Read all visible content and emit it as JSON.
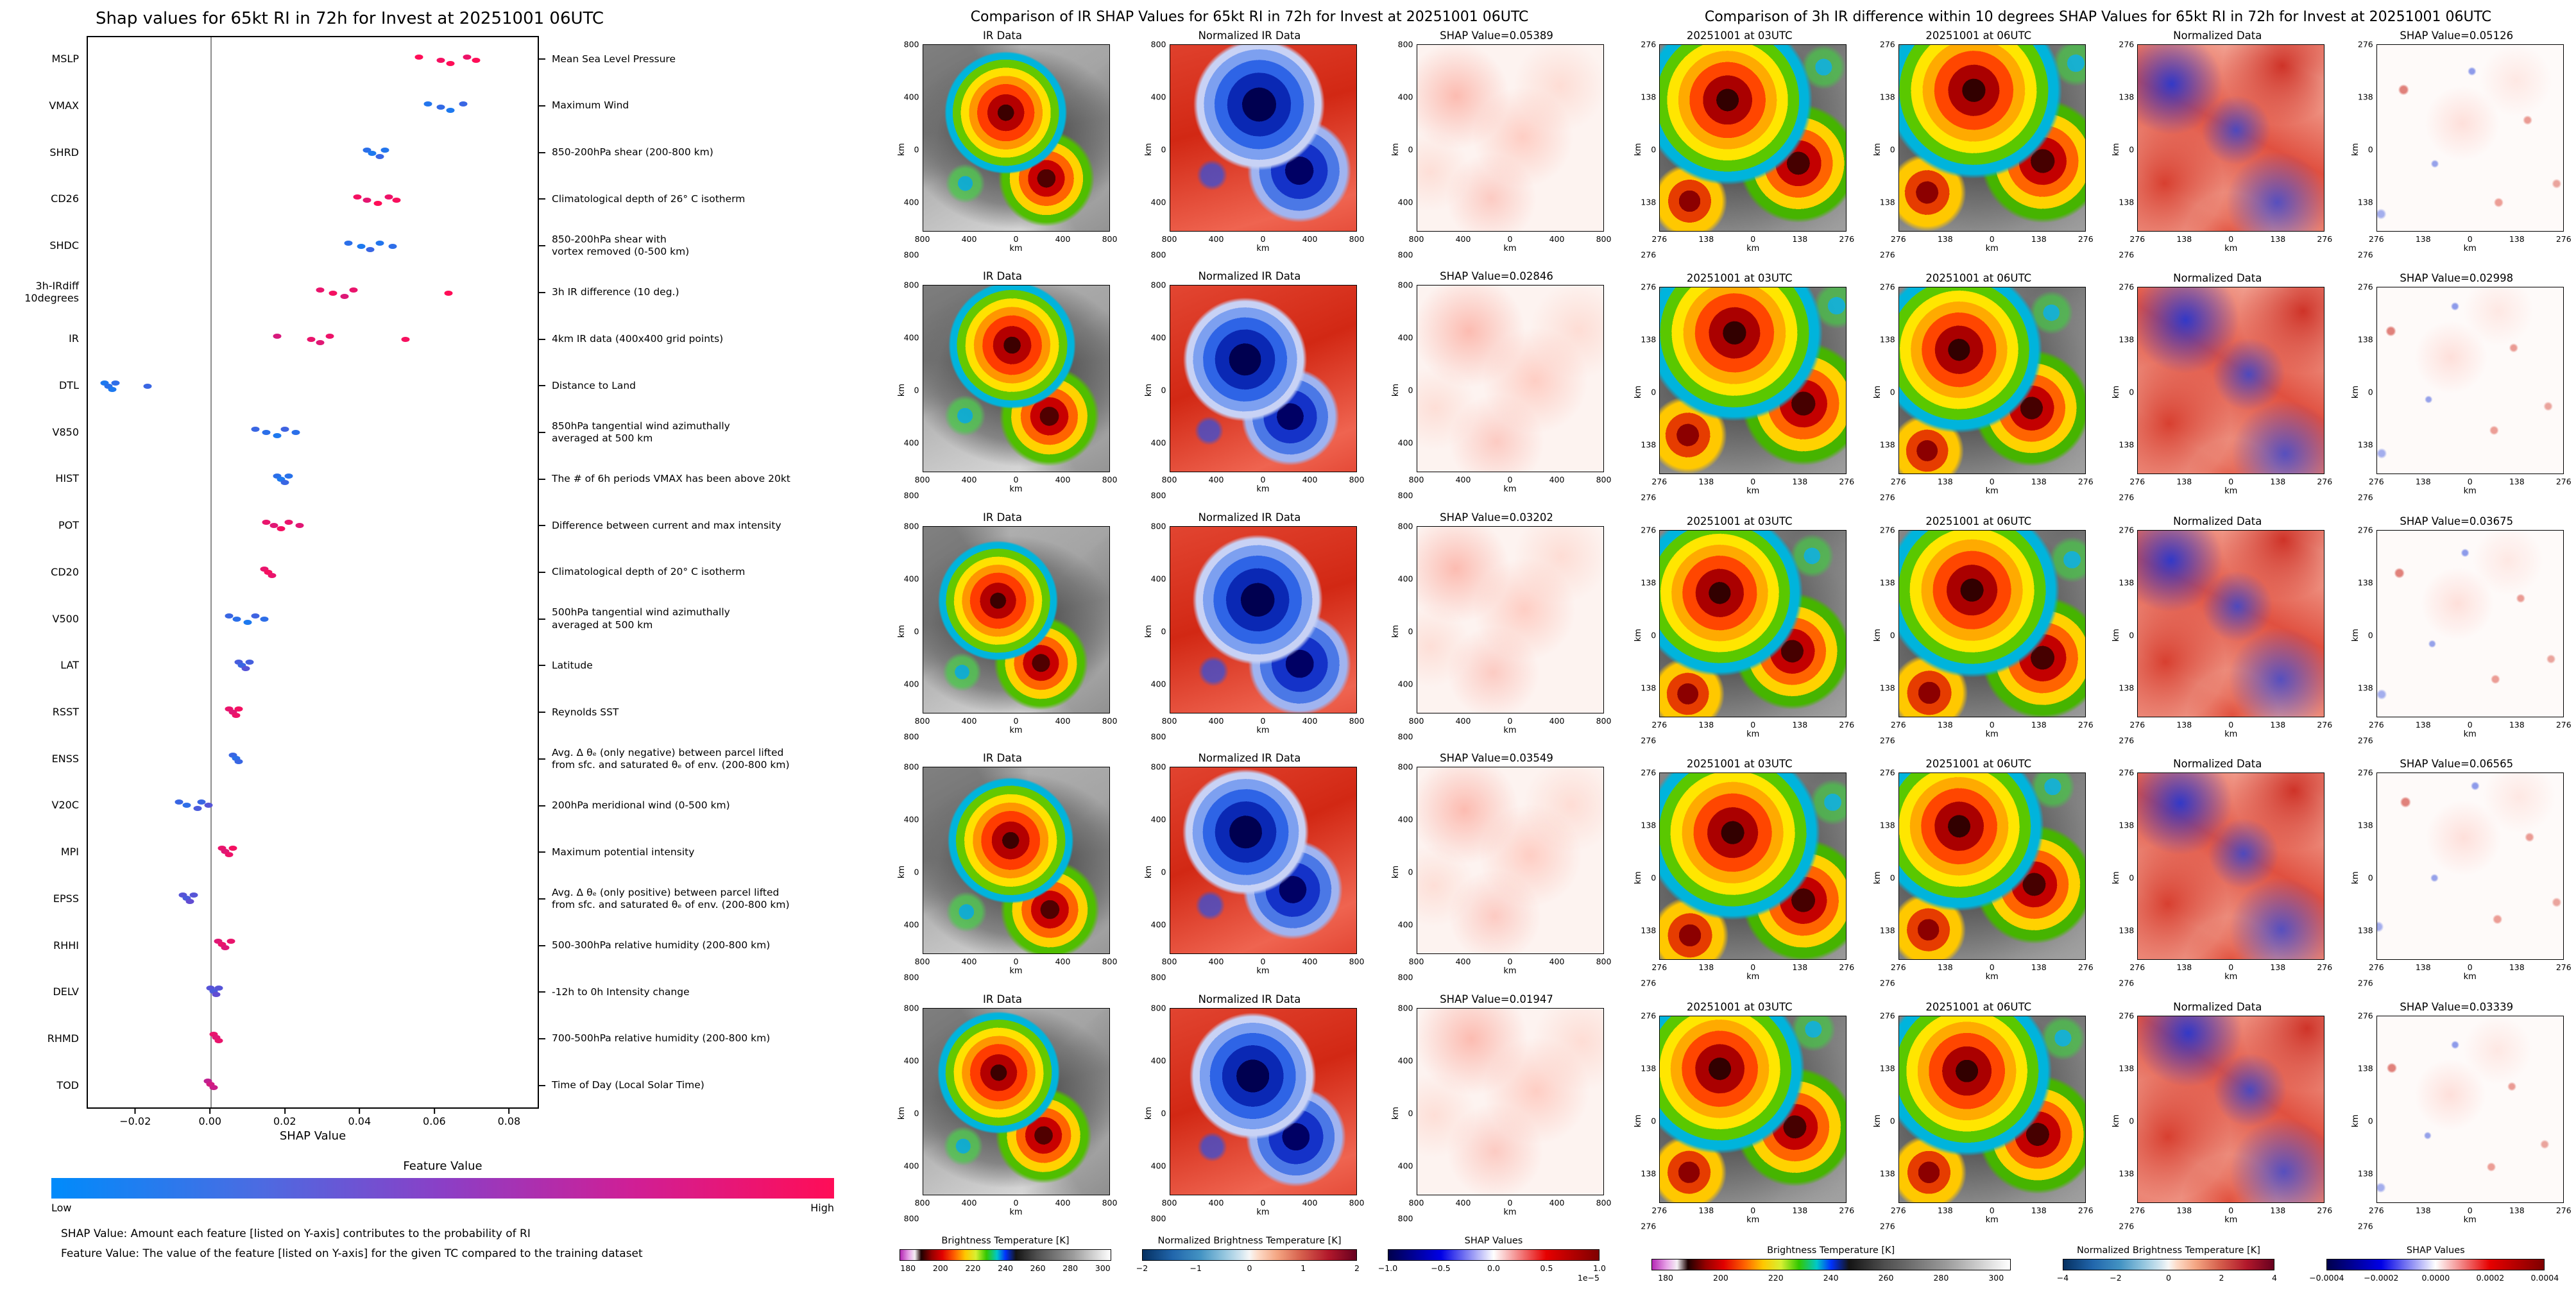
{
  "chart_data": [
    {
      "type": "scatter",
      "subtype": "shap-beeswarm",
      "title": "Shap values for 65kt RI in 72h for Invest at 20251001 06UTC",
      "xlabel": "SHAP Value",
      "xlim": [
        -0.033,
        0.088
      ],
      "xticks": [
        -0.02,
        0.0,
        0.02,
        0.04,
        0.06,
        0.08
      ],
      "grid": false,
      "legend_position": "none",
      "colors": {
        "low": "#008bfb",
        "mid": "#8f2fbf",
        "high": "#ff0d57",
        "zero_line": "#8d8d8d"
      },
      "colorbar": {
        "label": "Feature Value",
        "low": "Low",
        "high": "High"
      },
      "footnotes": [
        "SHAP Value: Amount each feature [listed on Y-axis] contributes to the probability of RI",
        "Feature Value: The value of the feature [listed on Y-axis] for the given TC compared to the training dataset"
      ],
      "features": [
        {
          "code": "MSLP",
          "desc": "Mean Sea Level Pressure",
          "points": [
            [
              0.056,
              1
            ],
            [
              0.062,
              0.95
            ],
            [
              0.0645,
              1
            ],
            [
              0.069,
              0.92
            ],
            [
              0.0715,
              1
            ]
          ]
        },
        {
          "code": "VMAX",
          "desc": "Maximum Wind",
          "points": [
            [
              0.0585,
              0.12
            ],
            [
              0.062,
              0.18
            ],
            [
              0.0645,
              0.1
            ],
            [
              0.068,
              0.2
            ]
          ]
        },
        {
          "code": "SHRD",
          "desc": "850-200hPa shear (200-800 km)",
          "points": [
            [
              0.042,
              0.15
            ],
            [
              0.0435,
              0.1
            ],
            [
              0.0455,
              0.2
            ],
            [
              0.047,
              0.12
            ]
          ]
        },
        {
          "code": "CD26",
          "desc": "Climatological depth of 26° C isotherm",
          "points": [
            [
              0.0395,
              0.95
            ],
            [
              0.042,
              0.88
            ],
            [
              0.045,
              1
            ],
            [
              0.048,
              0.92
            ],
            [
              0.05,
              0.97
            ]
          ]
        },
        {
          "code": "SHDC",
          "desc": "850-200hPa shear with\nvortex removed (0-500 km)",
          "points": [
            [
              0.037,
              0.15
            ],
            [
              0.0405,
              0.1
            ],
            [
              0.043,
              0.2
            ],
            [
              0.0455,
              0.12
            ],
            [
              0.049,
              0.16
            ]
          ]
        },
        {
          "code": "3h-IRdiff\n10degrees",
          "desc": "3h IR difference (10 deg.)",
          "points": [
            [
              0.0295,
              0.9
            ],
            [
              0.033,
              0.95
            ],
            [
              0.036,
              0.85
            ],
            [
              0.0385,
              0.9
            ],
            [
              0.064,
              1
            ]
          ]
        },
        {
          "code": "IR",
          "desc": "4km IR data (400x400 grid points)",
          "points": [
            [
              0.018,
              0.82
            ],
            [
              0.027,
              0.9
            ],
            [
              0.0295,
              0.86
            ],
            [
              0.032,
              0.92
            ],
            [
              0.0525,
              0.96
            ]
          ]
        },
        {
          "code": "DTL",
          "desc": "Distance to Land",
          "points": [
            [
              -0.0285,
              0.1
            ],
            [
              -0.0275,
              0.14
            ],
            [
              -0.0265,
              0.1
            ],
            [
              -0.0255,
              0.16
            ],
            [
              -0.017,
              0.2
            ]
          ]
        },
        {
          "code": "V850",
          "desc": "850hPa tangential wind azimuthally\naveraged at 500 km",
          "points": [
            [
              0.012,
              0.2
            ],
            [
              0.015,
              0.15
            ],
            [
              0.018,
              0.1
            ],
            [
              0.02,
              0.22
            ],
            [
              0.023,
              0.15
            ]
          ]
        },
        {
          "code": "HIST",
          "desc": "The # of 6h periods VMAX has been above 20kt",
          "points": [
            [
              0.018,
              0.15
            ],
            [
              0.019,
              0.1
            ],
            [
              0.02,
              0.2
            ],
            [
              0.021,
              0.14
            ]
          ]
        },
        {
          "code": "POT",
          "desc": "Difference between current and max intensity",
          "points": [
            [
              0.015,
              0.9
            ],
            [
              0.017,
              0.86
            ],
            [
              0.019,
              0.95
            ],
            [
              0.021,
              0.9
            ],
            [
              0.024,
              0.86
            ]
          ]
        },
        {
          "code": "CD20",
          "desc": "Climatological depth of 20° C isotherm",
          "points": [
            [
              0.0145,
              0.9
            ],
            [
              0.0155,
              0.96
            ],
            [
              0.0165,
              0.9
            ]
          ]
        },
        {
          "code": "V500",
          "desc": "500hPa tangential wind azimuthally\naveraged at 500 km",
          "points": [
            [
              0.005,
              0.2
            ],
            [
              0.007,
              0.15
            ],
            [
              0.01,
              0.1
            ],
            [
              0.012,
              0.22
            ],
            [
              0.0145,
              0.16
            ]
          ]
        },
        {
          "code": "LAT",
          "desc": "Latitude",
          "points": [
            [
              0.0075,
              0.25
            ],
            [
              0.0085,
              0.2
            ],
            [
              0.0095,
              0.3
            ],
            [
              0.0105,
              0.24
            ]
          ]
        },
        {
          "code": "RSST",
          "desc": "Reynolds SST",
          "points": [
            [
              0.005,
              0.9
            ],
            [
              0.006,
              0.86
            ],
            [
              0.0068,
              0.92
            ],
            [
              0.0075,
              0.95
            ]
          ]
        },
        {
          "code": "ENSS",
          "desc": "Avg. Δ θₑ (only negative) between parcel lifted\nfrom sfc. and saturated θₑ of env. (200-800 km)",
          "points": [
            [
              0.006,
              0.2
            ],
            [
              0.0068,
              0.15
            ],
            [
              0.0075,
              0.2
            ]
          ]
        },
        {
          "code": "V20C",
          "desc": "200hPa meridional wind (0-500 km)",
          "points": [
            [
              -0.0085,
              0.2
            ],
            [
              -0.0065,
              0.16
            ],
            [
              -0.0035,
              0.26
            ],
            [
              -0.0025,
              0.2
            ],
            [
              -0.0005,
              0.3
            ]
          ]
        },
        {
          "code": "MPI",
          "desc": "Maximum potential intensity",
          "points": [
            [
              0.003,
              0.9
            ],
            [
              0.004,
              0.86
            ],
            [
              0.005,
              0.92
            ],
            [
              0.006,
              0.95
            ]
          ]
        },
        {
          "code": "EPSS",
          "desc": "Avg. Δ θₑ (only positive) between parcel lifted\nfrom sfc. and saturated θₑ of env. (200-800 km)",
          "points": [
            [
              -0.0075,
              0.3
            ],
            [
              -0.0065,
              0.26
            ],
            [
              -0.0055,
              0.34
            ],
            [
              -0.0045,
              0.3
            ]
          ]
        },
        {
          "code": "RHHI",
          "desc": "500-300hPa relative humidity (200-800 km)",
          "points": [
            [
              0.002,
              0.86
            ],
            [
              0.003,
              0.9
            ],
            [
              0.004,
              0.85
            ],
            [
              0.0055,
              0.9
            ]
          ]
        },
        {
          "code": "DELV",
          "desc": "-12h to 0h Intensity change",
          "points": [
            [
              0.0,
              0.3
            ],
            [
              0.0008,
              0.26
            ],
            [
              0.0015,
              0.34
            ],
            [
              0.0022,
              0.3
            ]
          ]
        },
        {
          "code": "RHMD",
          "desc": "700-500hPa relative humidity (200-800 km)",
          "points": [
            [
              0.0008,
              0.9
            ],
            [
              0.0015,
              0.86
            ],
            [
              0.0022,
              0.9
            ]
          ]
        },
        {
          "code": "TOD",
          "desc": "Time of Day (Local Solar Time)",
          "points": [
            [
              -0.0008,
              0.72
            ],
            [
              0.0,
              0.8
            ],
            [
              0.0008,
              0.76
            ]
          ]
        }
      ]
    },
    {
      "type": "heatmap",
      "subtype": "image-grid",
      "title": "Comparison of IR SHAP Values for 65kt RI in 72h for Invest at 20251001 06UTC",
      "shap_values": [
        0.05389,
        0.02846,
        0.03202,
        0.03549,
        0.01947
      ],
      "rows": [
        [
          "IR Data",
          "Normalized IR Data",
          "SHAP Value=0.05389"
        ],
        [
          "IR Data",
          "Normalized IR Data",
          "SHAP Value=0.02846"
        ],
        [
          "IR Data",
          "Normalized IR Data",
          "SHAP Value=0.03202"
        ],
        [
          "IR Data",
          "Normalized IR Data",
          "SHAP Value=0.03549"
        ],
        [
          "IR Data",
          "Normalized IR Data",
          "SHAP Value=0.01947"
        ]
      ],
      "cell_kinds": [
        "ir",
        "nir",
        "shapfaint"
      ],
      "axis": {
        "xticks": [
          "800",
          "400",
          "0",
          "400",
          "800"
        ],
        "yticks": [
          "800",
          "400",
          "0",
          "400",
          "800"
        ],
        "xlabel": "km",
        "ylabel": "km",
        "extent_km": 800
      },
      "colorbars": [
        {
          "label": "Brightness Temperature [K]",
          "type": "ir",
          "ticks": [
            "180",
            "200",
            "220",
            "240",
            "260",
            "280",
            "300"
          ],
          "range": [
            180,
            300
          ]
        },
        {
          "label": "Normalized Brightness Temperature [K]",
          "type": "rdbu",
          "ticks": [
            "−2",
            "−1",
            "0",
            "1",
            "2"
          ],
          "range": [
            -2,
            2
          ]
        },
        {
          "label": "SHAP Values",
          "type": "seismic",
          "ticks": [
            "−1.0",
            "−0.5",
            "0.0",
            "0.5",
            "1.0"
          ],
          "exp": "1e−5",
          "range": [
            -1e-05,
            1e-05
          ]
        }
      ]
    },
    {
      "type": "heatmap",
      "subtype": "image-grid",
      "title": "Comparison of 3h IR difference within 10 degrees SHAP Values for 65kt RI in 72h for Invest at 20251001 06UTC",
      "shap_values": [
        0.05126,
        0.02998,
        0.03675,
        0.06565,
        0.03339
      ],
      "rows": [
        [
          "20251001 at 03UTC",
          "20251001 at 06UTC",
          "Normalized Data",
          "SHAP Value=0.05126"
        ],
        [
          "20251001 at 03UTC",
          "20251001 at 06UTC",
          "Normalized Data",
          "SHAP Value=0.02998"
        ],
        [
          "20251001 at 03UTC",
          "20251001 at 06UTC",
          "Normalized Data",
          "SHAP Value=0.03675"
        ],
        [
          "20251001 at 03UTC",
          "20251001 at 06UTC",
          "Normalized Data",
          "SHAP Value=0.06565"
        ],
        [
          "20251001 at 03UTC",
          "20251001 at 06UTC",
          "Normalized Data",
          "SHAP Value=0.03339"
        ]
      ],
      "cell_kinds": [
        "ir3",
        "ir3",
        "diff",
        "specks"
      ],
      "axis": {
        "xticks": [
          "276",
          "138",
          "0",
          "138",
          "276"
        ],
        "yticks": [
          "276",
          "138",
          "0",
          "138",
          "276"
        ],
        "xlabel": "km",
        "ylabel": "km",
        "extent_km": 276
      },
      "colorbars": [
        {
          "label": "Brightness Temperature [K]",
          "type": "ir",
          "ticks": [
            "180",
            "200",
            "220",
            "240",
            "260",
            "280",
            "300"
          ],
          "range": [
            180,
            300
          ]
        },
        {
          "label": "Normalized Brightness Temperature [K]",
          "type": "rdbu",
          "ticks": [
            "−4",
            "−2",
            "0",
            "2",
            "4"
          ],
          "range": [
            -4,
            4
          ]
        },
        {
          "label": "SHAP Values",
          "type": "seismic",
          "ticks": [
            "−0.0004",
            "−0.0002",
            "0.0000",
            "0.0002",
            "0.0004"
          ],
          "range": [
            -0.0004,
            0.0004
          ]
        }
      ]
    }
  ]
}
